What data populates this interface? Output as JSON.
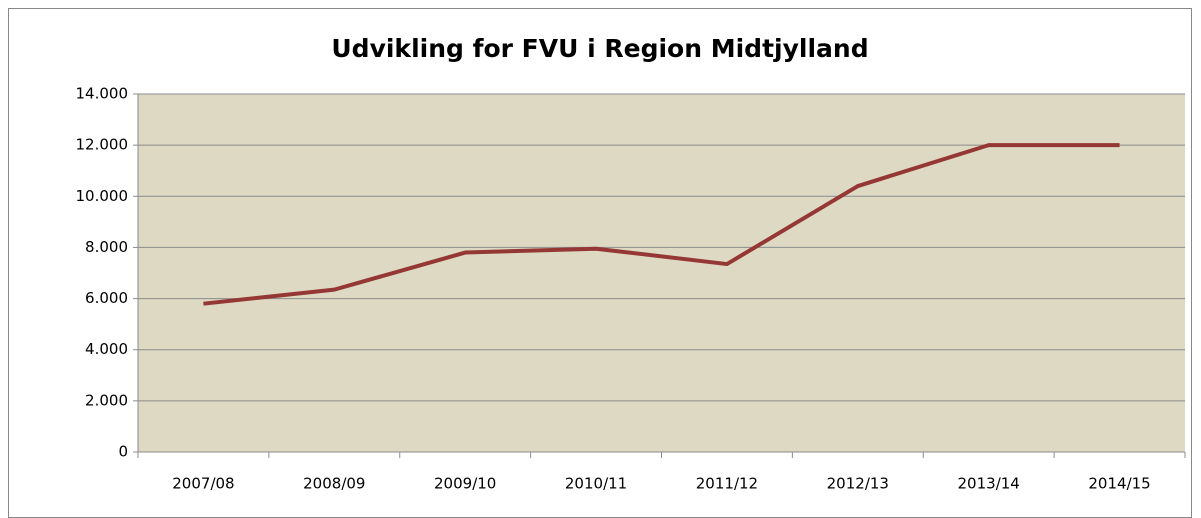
{
  "chart_data": {
    "type": "line",
    "title": "Udvikling for FVU i Region Midtjylland",
    "categories": [
      "2007/08",
      "2008/09",
      "2009/10",
      "2010/11",
      "2011/12",
      "2012/13",
      "2013/14",
      "2014/15"
    ],
    "series": [
      {
        "name": "FVU",
        "color": "#953735",
        "values": [
          5800,
          6350,
          7800,
          7950,
          7350,
          10400,
          12000,
          12000
        ]
      }
    ],
    "ylim": [
      0,
      14000
    ],
    "yticks": [
      0,
      {
        "value": 2000,
        "label": "2.000"
      },
      {
        "value": 4000,
        "label": "4.000"
      },
      {
        "value": 6000,
        "label": "6.000"
      },
      {
        "value": 8000,
        "label": "8.000"
      },
      {
        "value": 10000,
        "label": "10.000"
      },
      {
        "value": 12000,
        "label": "12.000"
      },
      {
        "value": 14000,
        "label": "14.000"
      }
    ],
    "grid": true
  }
}
